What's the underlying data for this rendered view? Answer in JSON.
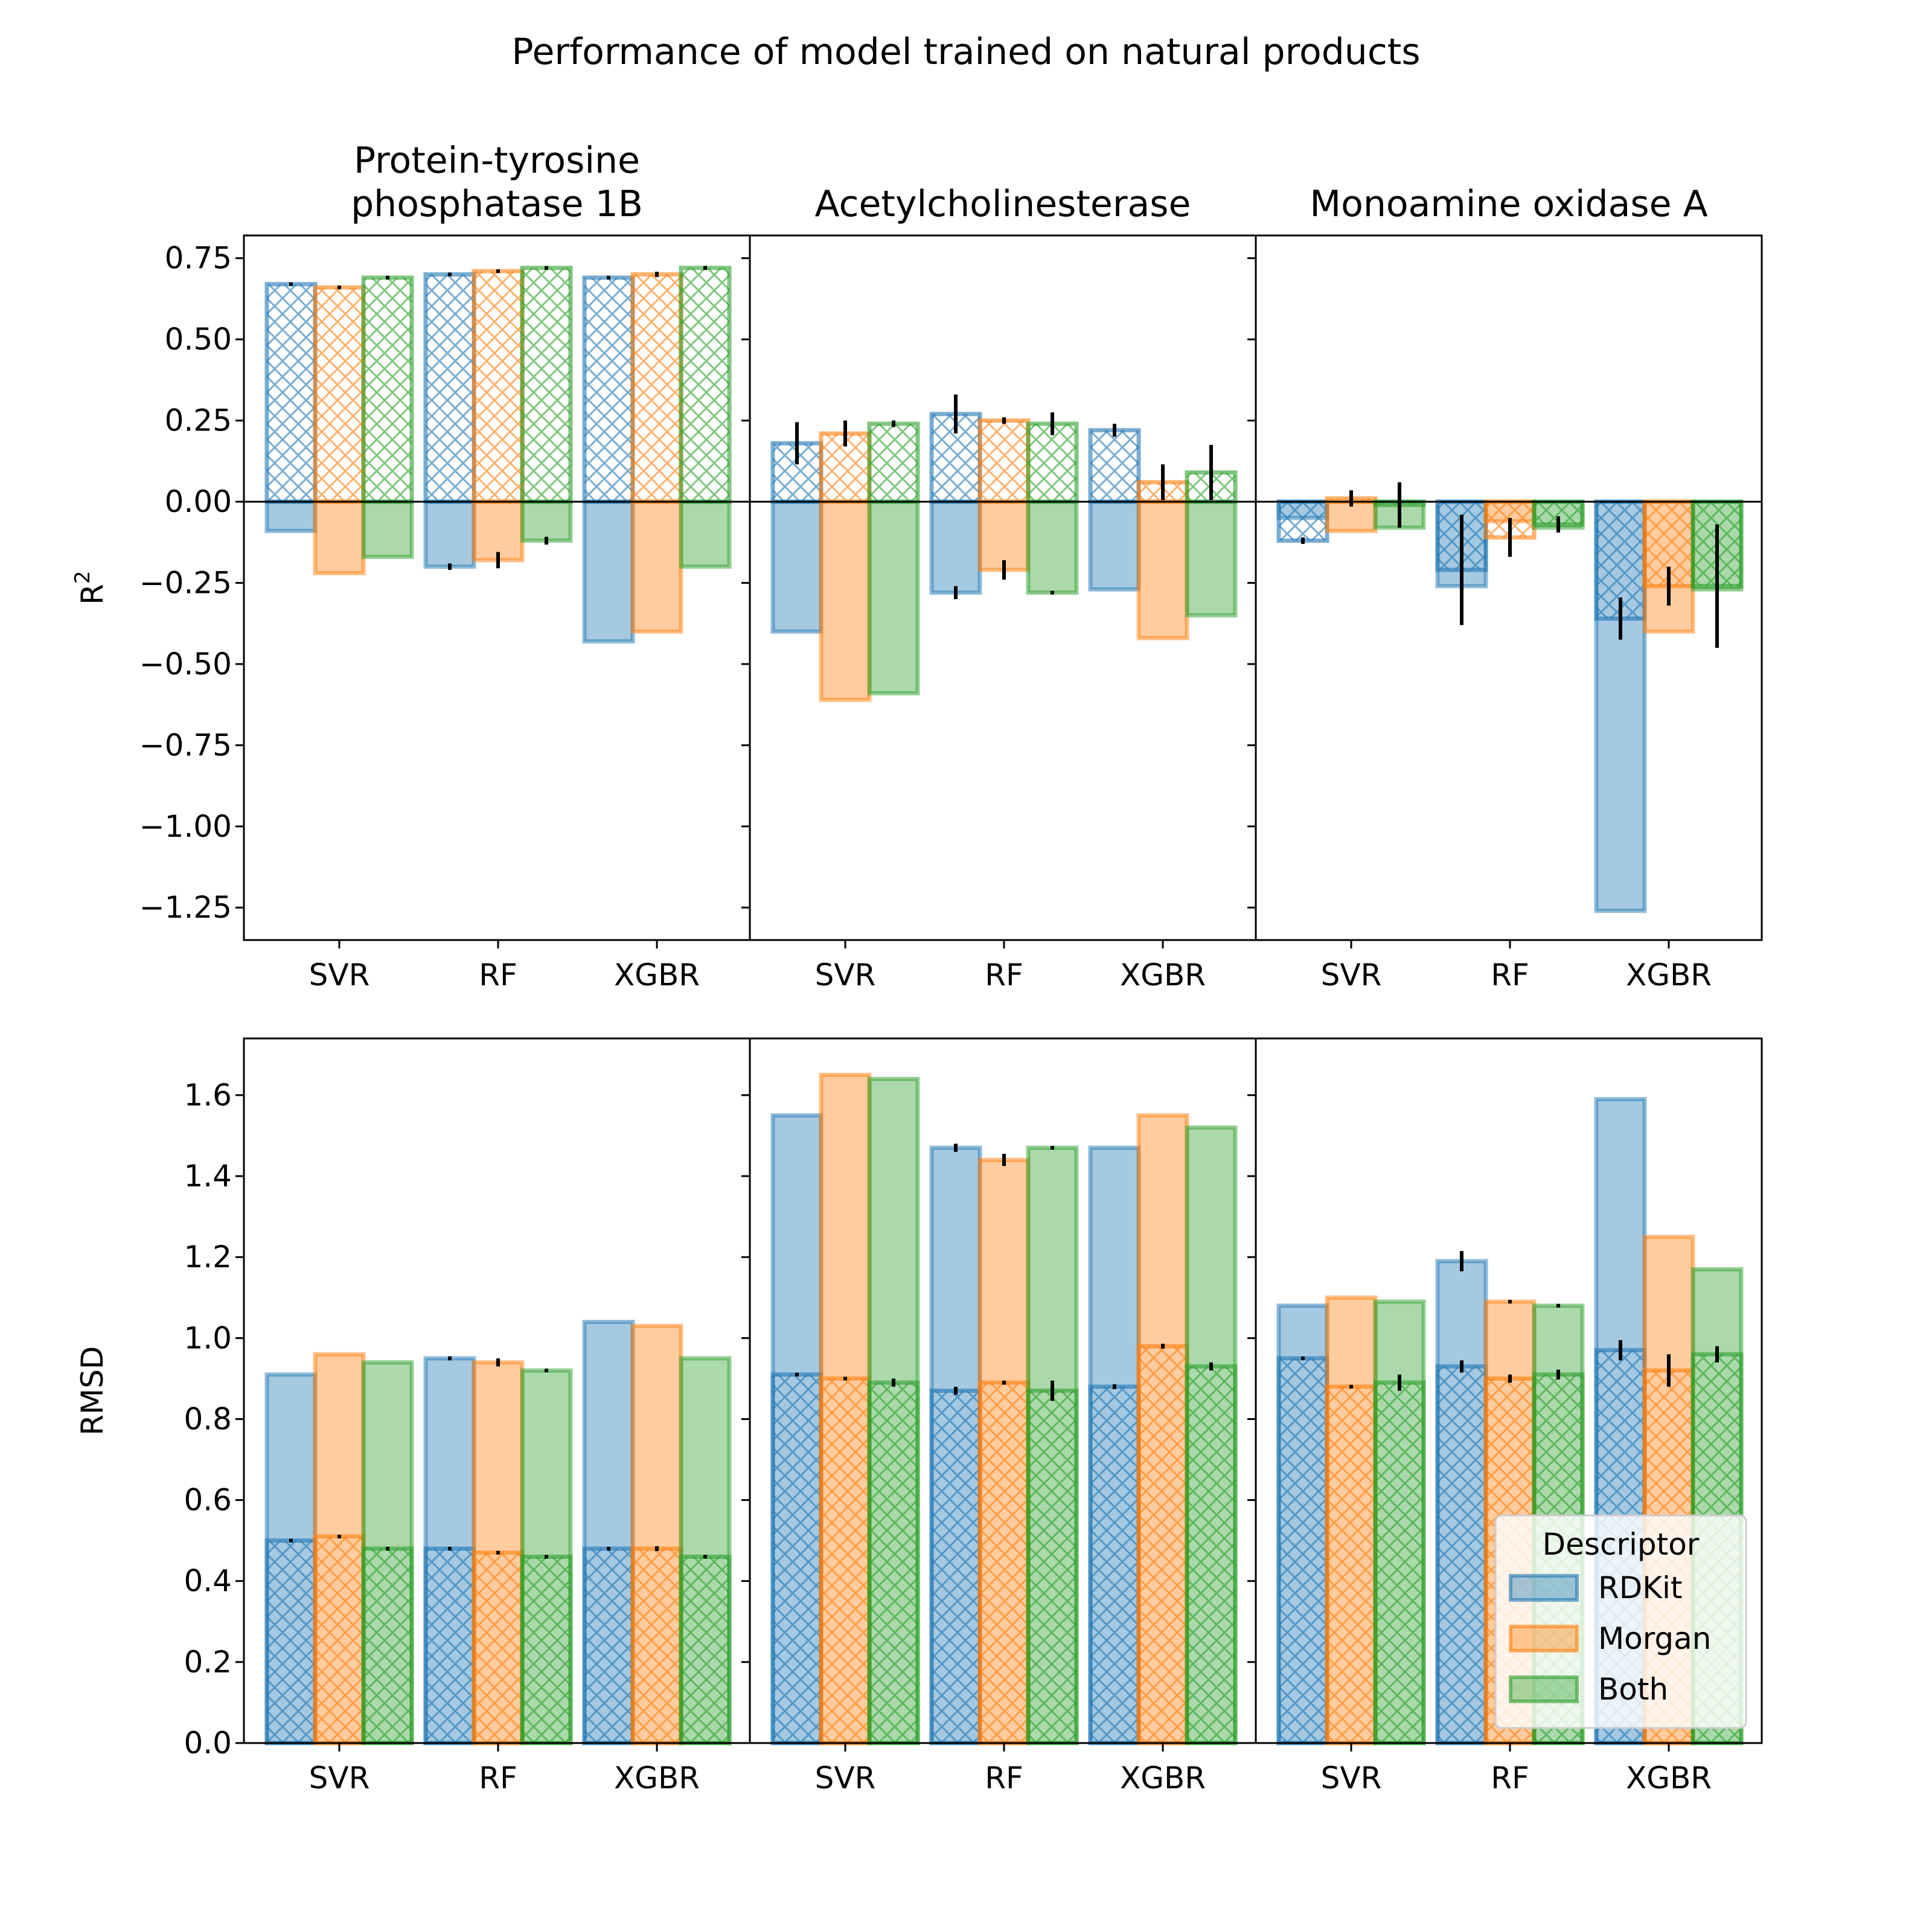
{
  "figure": {
    "title": "Performance of model trained on natural products"
  },
  "chart_data": {
    "type": "bar",
    "panels": [
      "Protein-tyrosine phosphatase 1B",
      "Acetylcholinesterase",
      "Monoamine oxidase A"
    ],
    "panel_title_lines": [
      [
        "Protein-tyrosine",
        "phosphatase 1B"
      ],
      [
        "Acetylcholinesterase"
      ],
      [
        "Monoamine oxidase A"
      ]
    ],
    "categories": [
      "SVR",
      "RF",
      "XGBR"
    ],
    "legend": {
      "title": "Descriptor",
      "entries": [
        "RDKit",
        "Morgan",
        "Both"
      ],
      "placement": "lower-right of bottom-right panel"
    },
    "colors": {
      "RDKit": "#1f77b4",
      "Morgan": "#ff7f0e",
      "Both": "#2ca02c"
    },
    "rows": [
      {
        "metric": "R2",
        "ylabel": "R",
        "ylabel_sup": "2",
        "ylim": [
          -1.35,
          0.82
        ],
        "ticks": [
          -1.25,
          -1.0,
          -0.75,
          -0.5,
          -0.25,
          0.0,
          0.25,
          0.5,
          0.75
        ],
        "tick_labels": [
          "−1.25",
          "−1.00",
          "−0.75",
          "−0.50",
          "−0.25",
          "0.00",
          "0.25",
          "0.50",
          "0.75"
        ],
        "zero_line": true,
        "panels": [
          {
            "hatched_mean": [
              [
                0.67,
                0.66,
                0.69
              ],
              [
                0.7,
                0.71,
                0.72
              ],
              [
                0.69,
                0.7,
                0.72
              ]
            ],
            "hatched_err": [
              [
                0.003,
                0.003,
                0.003
              ],
              [
                0.005,
                0.005,
                0.003
              ],
              [
                0.004,
                0.008,
                0.006
              ]
            ],
            "solid_mean": [
              [
                -0.09,
                -0.22,
                -0.17
              ],
              [
                -0.2,
                -0.18,
                -0.12
              ],
              [
                -0.43,
                -0.4,
                -0.2
              ]
            ],
            "solid_err": [
              [
                0.0,
                0.0,
                0.0
              ],
              [
                0.01,
                0.025,
                0.012
              ],
              [
                0.0,
                0.0,
                0.0
              ]
            ]
          },
          {
            "hatched_mean": [
              [
                0.18,
                0.21,
                0.24
              ],
              [
                0.27,
                0.25,
                0.24
              ],
              [
                0.22,
                0.06,
                0.09
              ]
            ],
            "hatched_err": [
              [
                0.065,
                0.04,
                0.01
              ],
              [
                0.06,
                0.01,
                0.035
              ],
              [
                0.02,
                0.055,
                0.085
              ]
            ],
            "solid_mean": [
              [
                -0.4,
                -0.61,
                -0.59
              ],
              [
                -0.28,
                -0.21,
                -0.28
              ],
              [
                -0.27,
                -0.42,
                -0.35
              ]
            ],
            "solid_err": [
              [
                0.0,
                0.0,
                0.0
              ],
              [
                0.02,
                0.03,
                0.005
              ],
              [
                0.0,
                0.0,
                0.0
              ]
            ]
          },
          {
            "hatched_mean": [
              [
                -0.12,
                0.01,
                -0.01
              ],
              [
                -0.21,
                -0.11,
                -0.07
              ],
              [
                -0.36,
                -0.26,
                -0.26
              ]
            ],
            "hatched_err": [
              [
                0.01,
                0.025,
                0.07
              ],
              [
                0.17,
                0.06,
                0.025
              ],
              [
                0.065,
                0.06,
                0.19
              ]
            ],
            "solid_mean": [
              [
                -0.05,
                -0.09,
                -0.08
              ],
              [
                -0.26,
                -0.06,
                -0.08
              ],
              [
                -1.26,
                -0.4,
                -0.27
              ]
            ],
            "solid_err": [
              [
                0.0,
                0.0,
                0.0
              ],
              [
                0.0,
                0.0,
                0.0
              ],
              [
                0.0,
                0.0,
                0.0
              ]
            ]
          }
        ]
      },
      {
        "metric": "RMSD",
        "ylabel": "RMSD",
        "ylabel_sup": "",
        "ylim": [
          0.0,
          1.74
        ],
        "ticks": [
          0.0,
          0.2,
          0.4,
          0.6,
          0.8,
          1.0,
          1.2,
          1.4,
          1.6
        ],
        "tick_labels": [
          "0.0",
          "0.2",
          "0.4",
          "0.6",
          "0.8",
          "1.0",
          "1.2",
          "1.4",
          "1.6"
        ],
        "zero_line": false,
        "panels": [
          {
            "hatched_mean": [
              [
                0.5,
                0.51,
                0.48
              ],
              [
                0.48,
                0.47,
                0.46
              ],
              [
                0.48,
                0.48,
                0.46
              ]
            ],
            "hatched_err": [
              [
                0.003,
                0.003,
                0.003
              ],
              [
                0.003,
                0.003,
                0.002
              ],
              [
                0.003,
                0.006,
                0.003
              ]
            ],
            "solid_mean": [
              [
                0.91,
                0.96,
                0.94
              ],
              [
                0.95,
                0.94,
                0.92
              ],
              [
                1.04,
                1.03,
                0.95
              ]
            ],
            "solid_err": [
              [
                0.0,
                0.0,
                0.0
              ],
              [
                0.005,
                0.01,
                0.004
              ],
              [
                0.0,
                0.0,
                0.0
              ]
            ]
          },
          {
            "hatched_mean": [
              [
                0.91,
                0.9,
                0.89
              ],
              [
                0.87,
                0.89,
                0.87
              ],
              [
                0.88,
                0.98,
                0.93
              ]
            ],
            "hatched_err": [
              [
                0.003,
                0.003,
                0.01
              ],
              [
                0.01,
                0.005,
                0.025
              ],
              [
                0.006,
                0.006,
                0.01
              ]
            ],
            "solid_mean": [
              [
                1.55,
                1.65,
                1.64
              ],
              [
                1.47,
                1.44,
                1.47
              ],
              [
                1.47,
                1.55,
                1.52
              ]
            ],
            "solid_err": [
              [
                0.0,
                0.0,
                0.0
              ],
              [
                0.01,
                0.015,
                0.003
              ],
              [
                0.0,
                0.0,
                0.0
              ]
            ]
          },
          {
            "hatched_mean": [
              [
                0.95,
                0.88,
                0.89
              ],
              [
                0.93,
                0.9,
                0.91
              ],
              [
                0.97,
                0.92,
                0.96
              ]
            ],
            "hatched_err": [
              [
                0.004,
                0.003,
                0.02
              ],
              [
                0.015,
                0.01,
                0.012
              ],
              [
                0.025,
                0.04,
                0.02
              ]
            ],
            "solid_mean": [
              [
                1.08,
                1.1,
                1.09
              ],
              [
                1.19,
                1.09,
                1.08
              ],
              [
                1.59,
                1.25,
                1.17
              ]
            ],
            "solid_err": [
              [
                0.0,
                0.0,
                0.0
              ],
              [
                0.025,
                0.003,
                0.003
              ],
              [
                0.0,
                0.0,
                0.0
              ]
            ]
          }
        ]
      }
    ]
  }
}
